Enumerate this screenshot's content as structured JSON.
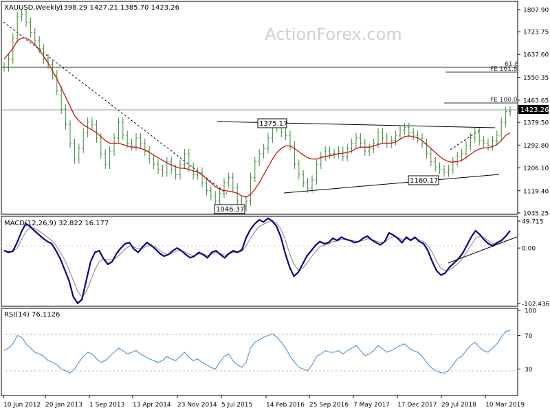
{
  "chart_data": [
    {
      "type": "line",
      "title": "XAUUSD,Weekly",
      "subtitle": "1398.29 1427.21 1385.70 1423.26",
      "watermark": "ActionForex.com",
      "y_ticks": [
        "1807.90",
        "1723.75",
        "1637.60",
        "1550.35",
        "1463.65",
        "1379.50",
        "1292.80",
        "1206.10",
        "1119.40",
        "1035.25"
      ],
      "ylim": [
        1035.25,
        1807.9
      ],
      "current_price_label": "1423.26",
      "x_tick_labels": [
        "10 Jun 2012",
        "20 Jan 2013",
        "1 Sep 2013",
        "13 Apr 2014",
        "23 Nov 2014",
        "5 Jul 2015",
        "14 Feb 2016",
        "25 Sep 2016",
        "7 May 2017",
        "17 Dec 2017",
        "29 Jul 2018",
        "10 Mar 2019"
      ],
      "annotations": {
        "fe618": "61.8",
        "fe1618": "FE 161.8",
        "fe100": "FE 100.0",
        "high_label": "1375.17",
        "low_label": "1046.37",
        "pivot_label": "1160.17"
      },
      "levels": {
        "fe1618": 1582,
        "fe100": 1447,
        "current": 1423.26
      },
      "series": [
        {
          "name": "price",
          "color": "#3a8a3a",
          "values": [
            1590,
            1620,
            1700,
            1780,
            1790,
            1760,
            1720,
            1690,
            1660,
            1620,
            1600,
            1560,
            1500,
            1430,
            1370,
            1300,
            1240,
            1280,
            1340,
            1380,
            1370,
            1320,
            1260,
            1220,
            1270,
            1320,
            1380,
            1330,
            1300,
            1290,
            1320,
            1300,
            1270,
            1240,
            1220,
            1200,
            1190,
            1230,
            1200,
            1180,
            1220,
            1260,
            1210,
            1180,
            1190,
            1150,
            1120,
            1100,
            1080,
            1110,
            1150,
            1170,
            1130,
            1080,
            1060,
            1080,
            1170,
            1230,
            1260,
            1280,
            1320,
            1370,
            1360,
            1340,
            1330,
            1290,
            1220,
            1180,
            1150,
            1130,
            1160,
            1220,
            1250,
            1270,
            1260,
            1260,
            1270,
            1250,
            1280,
            1300,
            1320,
            1300,
            1270,
            1280,
            1300,
            1340,
            1320,
            1300,
            1310,
            1330,
            1350,
            1360,
            1340,
            1330,
            1320,
            1300,
            1260,
            1230,
            1210,
            1200,
            1190,
            1200,
            1230,
            1250,
            1260,
            1290,
            1320,
            1340,
            1310,
            1300,
            1290,
            1310,
            1330,
            1380,
            1420,
            1423
          ]
        },
        {
          "name": "sma",
          "color": "#cc1111",
          "values": [
            1620,
            1640,
            1660,
            1690,
            1700,
            1700,
            1690,
            1675,
            1655,
            1630,
            1605,
            1575,
            1545,
            1510,
            1475,
            1440,
            1405,
            1385,
            1370,
            1360,
            1350,
            1340,
            1325,
            1310,
            1300,
            1300,
            1300,
            1295,
            1290,
            1285,
            1285,
            1280,
            1275,
            1265,
            1255,
            1245,
            1235,
            1225,
            1218,
            1210,
            1205,
            1205,
            1200,
            1195,
            1190,
            1180,
            1165,
            1150,
            1135,
            1125,
            1120,
            1118,
            1115,
            1110,
            1100,
            1095,
            1105,
            1125,
            1150,
            1180,
            1210,
            1240,
            1265,
            1280,
            1290,
            1290,
            1280,
            1268,
            1255,
            1245,
            1240,
            1240,
            1245,
            1250,
            1253,
            1256,
            1260,
            1262,
            1265,
            1270,
            1280,
            1285,
            1285,
            1285,
            1290,
            1295,
            1300,
            1300,
            1300,
            1305,
            1315,
            1325,
            1328,
            1325,
            1320,
            1310,
            1295,
            1280,
            1265,
            1250,
            1238,
            1230,
            1228,
            1230,
            1235,
            1245,
            1258,
            1270,
            1278,
            1282,
            1283,
            1287,
            1295,
            1310,
            1330,
            1340
          ]
        }
      ]
    },
    {
      "type": "line",
      "title": "MACD(12,26,9) 32.822 16.177",
      "y_ticks": [
        "49.715",
        "0.00",
        "-102.436"
      ],
      "ylim": [
        -102.436,
        49.715
      ],
      "series": [
        {
          "name": "macd",
          "color": "#000080",
          "values": [
            -5,
            -8,
            -6,
            10,
            30,
            45,
            40,
            32,
            25,
            18,
            12,
            8,
            -5,
            -20,
            -40,
            -60,
            -90,
            -102,
            -95,
            -60,
            -25,
            -8,
            -5,
            -20,
            -30,
            -25,
            -10,
            0,
            8,
            10,
            -2,
            -8,
            2,
            10,
            5,
            -2,
            -10,
            -15,
            -12,
            -5,
            0,
            -5,
            -12,
            -18,
            -15,
            -8,
            -12,
            -18,
            -8,
            -5,
            -12,
            -18,
            -10,
            -5,
            -8,
            -3,
            20,
            35,
            45,
            52,
            48,
            55,
            50,
            40,
            20,
            -10,
            -35,
            -52,
            -45,
            -30,
            -15,
            -5,
            5,
            12,
            8,
            10,
            18,
            14,
            20,
            16,
            14,
            10,
            12,
            18,
            22,
            15,
            10,
            6,
            12,
            28,
            24,
            18,
            10,
            20,
            14,
            20,
            12,
            8,
            -5,
            -25,
            -42,
            -50,
            -46,
            -35,
            -28,
            -20,
            -10,
            5,
            20,
            32,
            25,
            15,
            8,
            4,
            10,
            14,
            22,
            32
          ]
        },
        {
          "name": "signal",
          "color": "#808080",
          "values": [
            -4,
            -6,
            -6,
            0,
            15,
            30,
            38,
            36,
            32,
            26,
            20,
            14,
            5,
            -8,
            -22,
            -40,
            -60,
            -80,
            -90,
            -80,
            -60,
            -40,
            -25,
            -20,
            -22,
            -22,
            -18,
            -10,
            -2,
            4,
            2,
            -2,
            -1,
            4,
            4,
            2,
            -4,
            -10,
            -12,
            -9,
            -5,
            -5,
            -8,
            -12,
            -14,
            -11,
            -11,
            -14,
            -11,
            -8,
            -10,
            -13,
            -11,
            -8,
            -8,
            -6,
            5,
            18,
            30,
            40,
            44,
            48,
            49,
            46,
            35,
            15,
            -10,
            -30,
            -40,
            -38,
            -28,
            -17,
            -7,
            2,
            5,
            7,
            12,
            13,
            16,
            16,
            15,
            13,
            12,
            14,
            17,
            16,
            13,
            10,
            11,
            18,
            21,
            20,
            15,
            17,
            16,
            18,
            15,
            12,
            4,
            -8,
            -25,
            -38,
            -42,
            -40,
            -35,
            -28,
            -19,
            -7,
            6,
            18,
            22,
            19,
            13,
            8,
            8,
            10,
            13,
            16
          ]
        }
      ]
    },
    {
      "type": "line",
      "title": "RSI(14) 76.1126",
      "y_ticks": [
        "100",
        "70",
        "30",
        "0"
      ],
      "ylim": [
        0,
        100
      ],
      "series": [
        {
          "name": "rsi",
          "color": "#4a90d0",
          "values": [
            52,
            55,
            60,
            70,
            68,
            60,
            55,
            50,
            48,
            45,
            40,
            38,
            35,
            30,
            28,
            25,
            30,
            38,
            45,
            50,
            48,
            42,
            38,
            40,
            45,
            50,
            55,
            52,
            48,
            50,
            52,
            48,
            45,
            42,
            40,
            38,
            40,
            45,
            42,
            40,
            45,
            50,
            44,
            40,
            42,
            38,
            35,
            32,
            30,
            38,
            45,
            48,
            40,
            35,
            32,
            38,
            55,
            62,
            65,
            68,
            70,
            72,
            68,
            62,
            55,
            45,
            38,
            32,
            30,
            28,
            35,
            45,
            48,
            52,
            50,
            50,
            52,
            48,
            52,
            55,
            58,
            52,
            46,
            48,
            52,
            58,
            54,
            50,
            52,
            55,
            58,
            60,
            55,
            52,
            50,
            45,
            38,
            32,
            28,
            26,
            25,
            28,
            35,
            42,
            45,
            52,
            58,
            62,
            56,
            52,
            50,
            55,
            60,
            68,
            75,
            76
          ]
        }
      ]
    }
  ]
}
